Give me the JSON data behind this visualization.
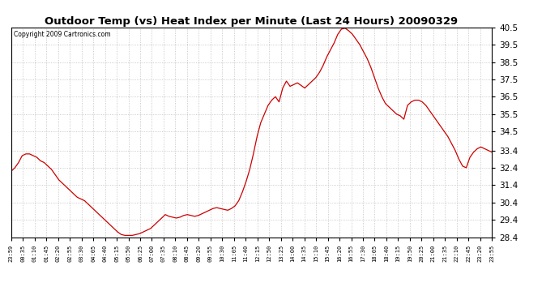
{
  "title": "Outdoor Temp (vs) Heat Index per Minute (Last 24 Hours) 20090329",
  "copyright": "Copyright 2009 Cartronics.com",
  "line_color": "#cc0000",
  "background_color": "#ffffff",
  "grid_color": "#bbbbbb",
  "ylim": [
    28.4,
    40.5
  ],
  "yticks": [
    28.4,
    29.4,
    30.4,
    31.4,
    32.4,
    33.4,
    34.5,
    35.5,
    36.5,
    37.5,
    38.5,
    39.5,
    40.5
  ],
  "xtick_labels": [
    "23:59",
    "00:35",
    "01:10",
    "01:45",
    "02:20",
    "02:55",
    "03:30",
    "04:05",
    "04:40",
    "05:15",
    "05:50",
    "06:25",
    "07:00",
    "07:35",
    "08:10",
    "08:45",
    "09:20",
    "09:55",
    "10:30",
    "11:05",
    "11:40",
    "12:15",
    "12:50",
    "13:25",
    "14:00",
    "14:35",
    "15:10",
    "15:45",
    "16:20",
    "16:55",
    "17:30",
    "18:05",
    "18:40",
    "19:15",
    "19:50",
    "20:25",
    "21:00",
    "21:35",
    "22:10",
    "22:45",
    "23:20",
    "23:55"
  ],
  "curve": [
    32.2,
    32.4,
    32.7,
    33.1,
    33.2,
    33.2,
    33.1,
    33.0,
    32.8,
    32.7,
    32.5,
    32.3,
    32.0,
    31.7,
    31.5,
    31.3,
    31.1,
    30.9,
    30.7,
    30.6,
    30.5,
    30.3,
    30.1,
    29.9,
    29.7,
    29.5,
    29.3,
    29.1,
    28.9,
    28.7,
    28.55,
    28.5,
    28.5,
    28.5,
    28.55,
    28.6,
    28.7,
    28.8,
    28.9,
    29.1,
    29.3,
    29.5,
    29.7,
    29.6,
    29.55,
    29.5,
    29.55,
    29.65,
    29.7,
    29.65,
    29.6,
    29.65,
    29.75,
    29.85,
    29.95,
    30.05,
    30.1,
    30.05,
    30.0,
    29.95,
    30.05,
    30.2,
    30.5,
    31.0,
    31.6,
    32.3,
    33.2,
    34.2,
    35.0,
    35.5,
    36.0,
    36.3,
    36.5,
    36.2,
    37.0,
    37.4,
    37.1,
    37.2,
    37.3,
    37.15,
    37.0,
    37.2,
    37.4,
    37.6,
    37.9,
    38.3,
    38.8,
    39.2,
    39.6,
    40.1,
    40.4,
    40.45,
    40.3,
    40.1,
    39.8,
    39.5,
    39.1,
    38.7,
    38.2,
    37.6,
    37.0,
    36.5,
    36.1,
    35.9,
    35.7,
    35.5,
    35.4,
    35.2,
    36.0,
    36.2,
    36.3,
    36.3,
    36.2,
    36.0,
    35.7,
    35.4,
    35.1,
    34.8,
    34.5,
    34.2,
    33.8,
    33.4,
    32.9,
    32.5,
    32.4,
    33.0,
    33.3,
    33.5,
    33.6,
    33.5,
    33.4,
    33.3
  ]
}
